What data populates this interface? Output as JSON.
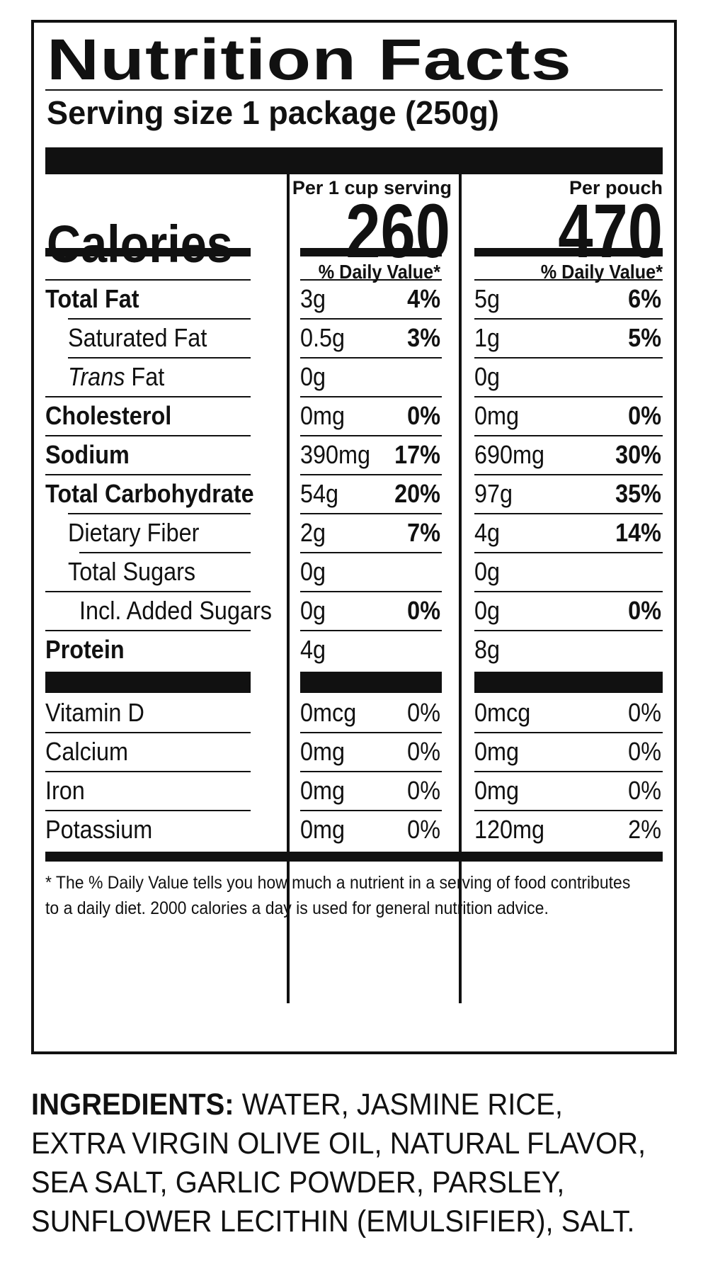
{
  "label": {
    "title": "Nutrition Facts",
    "serving_size": "Serving size 1 package (250g)",
    "calories_label": "Calories",
    "columns": [
      {
        "header": "Per 1 cup serving",
        "calories": "260",
        "dv_header": "% Daily Value*"
      },
      {
        "header": "Per pouch",
        "calories": "470",
        "dv_header": "% Daily Value*"
      }
    ],
    "nutrients": [
      {
        "name": "Total Fat",
        "a1": "3g",
        "p1": "4%",
        "a2": "5g",
        "p2": "6%"
      },
      {
        "name": "Saturated Fat",
        "a1": "0.5g",
        "p1": "3%",
        "a2": "1g",
        "p2": "5%"
      },
      {
        "name_italic": "Trans",
        "name": " Fat",
        "a1": "0g",
        "p1": "",
        "a2": "0g",
        "p2": ""
      },
      {
        "name": "Cholesterol",
        "a1": "0mg",
        "p1": "0%",
        "a2": "0mg",
        "p2": "0%"
      },
      {
        "name": "Sodium",
        "a1": "390mg",
        "p1": "17%",
        "a2": "690mg",
        "p2": "30%"
      },
      {
        "name": "Total Carbohydrate",
        "a1": "54g",
        "p1": "20%",
        "a2": "97g",
        "p2": "35%"
      },
      {
        "name": "Dietary Fiber",
        "a1": "2g",
        "p1": "7%",
        "a2": "4g",
        "p2": "14%"
      },
      {
        "name": "Total Sugars",
        "a1": "0g",
        "p1": "",
        "a2": "0g",
        "p2": ""
      },
      {
        "name": "Incl. Added Sugars",
        "a1": "0g",
        "p1": "0%",
        "a2": "0g",
        "p2": "0%"
      },
      {
        "name": "Protein",
        "a1": "4g",
        "p1": "",
        "a2": "8g",
        "p2": ""
      }
    ],
    "vitamins": [
      {
        "name": "Vitamin D",
        "a1": "0mcg",
        "p1": "0%",
        "a2": "0mcg",
        "p2": "0%"
      },
      {
        "name": "Calcium",
        "a1": "0mg",
        "p1": "0%",
        "a2": "0mg",
        "p2": "0%"
      },
      {
        "name": "Iron",
        "a1": "0mg",
        "p1": "0%",
        "a2": "0mg",
        "p2": "0%"
      },
      {
        "name": "Potassium",
        "a1": "0mg",
        "p1": "0%",
        "a2": "120mg",
        "p2": "2%"
      }
    ],
    "footnote": [
      "* The % Daily Value tells you how much a nutrient in a serving of food contributes",
      "to a daily diet. 2000 calories a day is used for general nutrition advice."
    ]
  },
  "ingredients": {
    "label": "INGREDIENTS:",
    "text": " WATER, JASMINE RICE, EXTRA VIRGIN OLIVE OIL, NATURAL FLAVOR, SEA SALT, GARLIC POWDER, PARSLEY, SUNFLOWER LECITHIN (EMULSIFIER), SALT."
  }
}
